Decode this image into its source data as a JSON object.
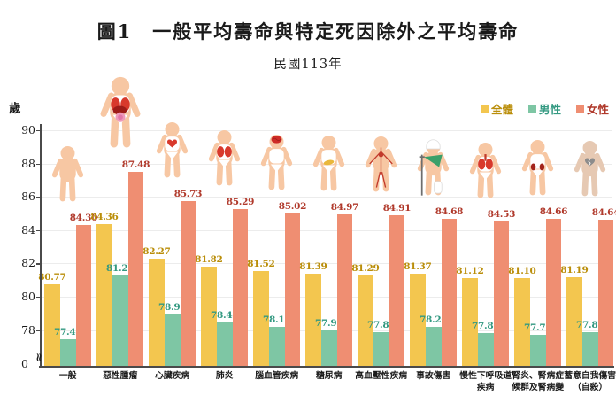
{
  "chart_data": {
    "type": "bar",
    "title": "圖1　一般平均壽命與特定死因除外之平均壽命",
    "subtitle": "民國113年",
    "ylabel": "歲",
    "y_ticks": [
      78,
      80,
      82,
      84,
      86,
      88,
      90
    ],
    "y_origin_label": "0",
    "y_axis_break": true,
    "ylim_display": [
      75.85,
      90.5
    ],
    "grid": true,
    "legend_position": "top-right",
    "categories": [
      "一般",
      "惡性腫瘤",
      "心臟疾病",
      "肺炎",
      "腦血管疾病",
      "糖尿病",
      "高血壓性疾病",
      "事故傷害",
      "慢性下呼吸道\n疾病",
      "腎炎、腎病症\n候群及腎病變",
      "蓄意自我傷害\n（自殺）"
    ],
    "icons": [
      "plain",
      "tumor",
      "heart",
      "lungs",
      "brain",
      "pancreas",
      "vessels",
      "injury",
      "airways",
      "kidneys",
      "broken"
    ],
    "series": [
      {
        "name": "全體",
        "color": "#F3C64F",
        "label_color": "#BA8E0A",
        "values": [
          80.77,
          84.36,
          82.27,
          81.82,
          81.52,
          81.39,
          81.29,
          81.37,
          81.12,
          81.1,
          81.19
        ]
      },
      {
        "name": "男性",
        "color": "#7EC6A4",
        "label_color": "#339981",
        "values": [
          77.42,
          81.26,
          78.96,
          78.48,
          78.17,
          77.99,
          77.87,
          78.2,
          77.83,
          77.71,
          77.89
        ]
      },
      {
        "name": "女性",
        "color": "#EF8E72",
        "label_color": "#B0392B",
        "values": [
          84.3,
          87.48,
          85.73,
          85.29,
          85.02,
          84.97,
          84.91,
          84.68,
          84.53,
          84.66,
          84.64
        ]
      }
    ],
    "colors": {
      "skin": "#F7C7A3",
      "skin_gray": "#E6C9B3",
      "organ_red": "#D8392C",
      "organ_dark_red": "#9E1C18",
      "axis": "#4a4a4a"
    }
  }
}
